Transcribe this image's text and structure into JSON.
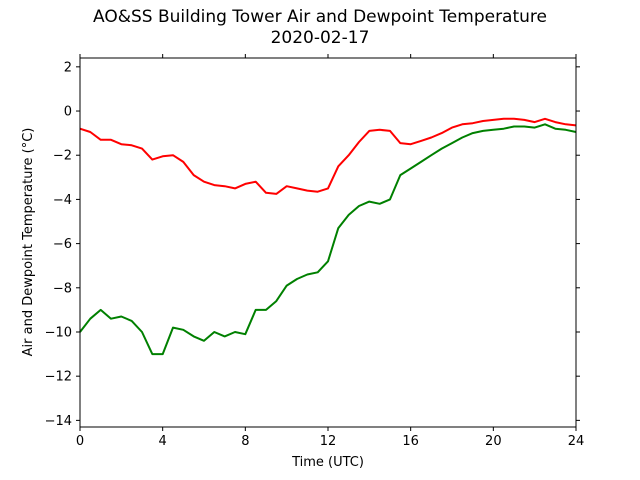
{
  "chart_data": {
    "type": "line",
    "title": "AO&SS Building Tower Air and Dewpoint Temperature",
    "subtitle": "2020-02-17",
    "xlabel": "Time (UTC)",
    "ylabel": "Air and Dewpoint Temperature (°C)",
    "xlim": [
      0,
      24
    ],
    "ylim": [
      -14.3,
      2.4
    ],
    "xticks": [
      0,
      4,
      8,
      12,
      16,
      20,
      24
    ],
    "yticks": [
      -14,
      -12,
      -10,
      -8,
      -6,
      -4,
      -2,
      0,
      2
    ],
    "grid": false,
    "legend": "none",
    "series": [
      {
        "color": "#ff0000",
        "x": [
          0,
          0.5,
          1,
          1.5,
          2,
          2.5,
          3,
          3.5,
          4,
          4.5,
          5,
          5.5,
          6,
          6.5,
          7,
          7.5,
          8,
          8.5,
          9,
          9.5,
          10,
          10.5,
          11,
          11.5,
          12,
          12.5,
          13,
          13.5,
          14,
          14.5,
          15,
          15.5,
          16,
          16.5,
          17,
          17.5,
          18,
          18.5,
          19,
          19.5,
          20,
          20.5,
          21,
          21.5,
          22,
          22.5,
          23,
          23.5,
          24
        ],
        "y": [
          -0.8,
          -0.95,
          -1.3,
          -1.3,
          -1.5,
          -1.55,
          -1.7,
          -2.2,
          -2.05,
          -2.0,
          -2.3,
          -2.9,
          -3.2,
          -3.35,
          -3.4,
          -3.5,
          -3.3,
          -3.2,
          -3.7,
          -3.75,
          -3.4,
          -3.5,
          -3.6,
          -3.65,
          -3.5,
          -2.5,
          -2.0,
          -1.4,
          -0.9,
          -0.85,
          -0.9,
          -1.45,
          -1.5,
          -1.35,
          -1.2,
          -1.0,
          -0.75,
          -0.6,
          -0.55,
          -0.45,
          -0.4,
          -0.35,
          -0.35,
          -0.4,
          -0.5,
          -0.35,
          -0.5,
          -0.6,
          -0.65
        ]
      },
      {
        "color": "#008000",
        "x": [
          0,
          0.5,
          1,
          1.5,
          2,
          2.5,
          3,
          3.5,
          4,
          4.5,
          5,
          5.5,
          6,
          6.5,
          7,
          7.5,
          8,
          8.5,
          9,
          9.5,
          10,
          10.5,
          11,
          11.5,
          12,
          12.5,
          13,
          13.5,
          14,
          14.5,
          15,
          15.5,
          16,
          16.5,
          17,
          17.5,
          18,
          18.5,
          19,
          19.5,
          20,
          20.5,
          21,
          21.5,
          22,
          22.5,
          23,
          23.5,
          24
        ],
        "y": [
          -10.0,
          -9.4,
          -9.0,
          -9.4,
          -9.3,
          -9.5,
          -10.0,
          -11.0,
          -11.0,
          -9.8,
          -9.9,
          -10.2,
          -10.4,
          -10.0,
          -10.2,
          -10.0,
          -10.1,
          -9.0,
          -9.0,
          -8.6,
          -7.9,
          -7.6,
          -7.4,
          -7.3,
          -6.8,
          -5.3,
          -4.7,
          -4.3,
          -4.1,
          -4.2,
          -4.0,
          -2.9,
          -2.6,
          -2.3,
          -2.0,
          -1.7,
          -1.45,
          -1.2,
          -1.0,
          -0.9,
          -0.85,
          -0.8,
          -0.7,
          -0.7,
          -0.75,
          -0.6,
          -0.8,
          -0.85,
          -0.95
        ]
      }
    ]
  }
}
